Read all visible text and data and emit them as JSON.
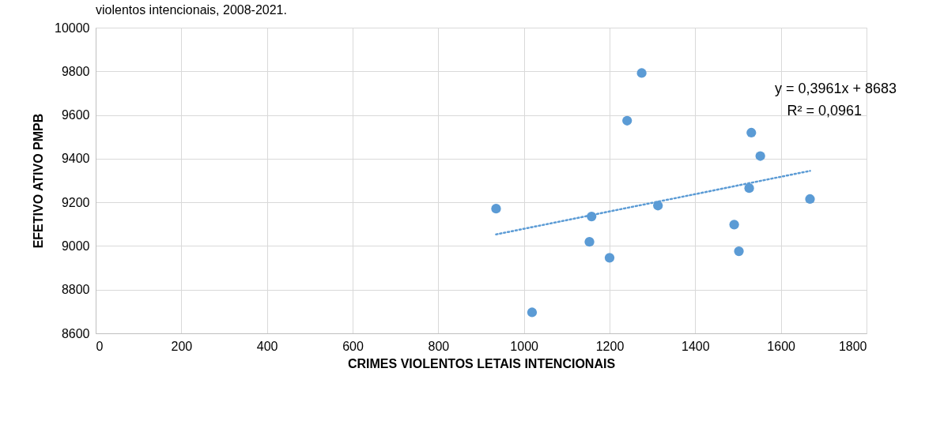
{
  "chart_data": {
    "type": "scatter",
    "title": "violentos intencionais, 2008-2021.",
    "xlabel": "CRIMES VIOLENTOS LETAIS INTENCIONAIS",
    "ylabel": "EFETIVO ATIVO PMPB",
    "xlim": [
      0,
      1800
    ],
    "xticks": [
      0,
      200,
      400,
      600,
      800,
      1000,
      1200,
      1400,
      1600,
      1800
    ],
    "ylim": [
      8600,
      10000
    ],
    "yticks": [
      8600,
      8800,
      9000,
      9200,
      9400,
      9600,
      9800,
      10000
    ],
    "grid": true,
    "annotations": [
      "y = 0,3961x + 8683",
      "R² = 0,0961"
    ],
    "series": [
      {
        "marker": "circle",
        "color": "#5b9bd5",
        "x": [
          935,
          1019,
          1158,
          1153,
          1200,
          1241,
          1275,
          1313,
          1491,
          1502,
          1526,
          1531,
          1552,
          1668
        ],
        "values": [
          9171,
          8696,
          9135,
          9019,
          8946,
          9574,
          9792,
          9185,
          9098,
          8976,
          9265,
          9519,
          9412,
          9215
        ]
      },
      {
        "type": "line",
        "marker": "none",
        "line_style": "dotted",
        "color": "#5b9bd5",
        "x": [
          935,
          1668
        ],
        "values": [
          9053,
          9344
        ]
      }
    ]
  }
}
